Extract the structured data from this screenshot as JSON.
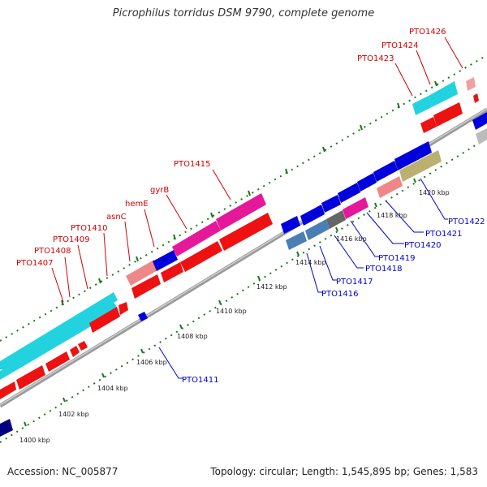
{
  "title": "Picrophilus torridus DSM 9790, complete genome",
  "footer": {
    "accession": "Accession: NC_005877",
    "summary": "Topology: circular; Length: 1,545,895 bp; Genes: 1,583"
  },
  "colors": {
    "line_red": "#d00000",
    "line_blue": "#0000cc",
    "tick_green": "#1a7a1a",
    "backbone": "#999999"
  },
  "ruler": [
    "1400 kbp",
    "1402 kbp",
    "1404 kbp",
    "1406 kbp",
    "1408 kbp",
    "1410 kbp",
    "1412 kbp",
    "1414 kbp",
    "1416 kbp",
    "1418 kbp",
    "1420 kbp"
  ],
  "labels_top": [
    "PTO1407",
    "PTO1408",
    "PTO1409",
    "PTO1410",
    "asnC",
    "hemE",
    "gyrB",
    "PTO1415",
    "PTO1423",
    "PTO1424",
    "PTO1426"
  ],
  "labels_bottom": [
    "PTO1411",
    "PTO1416",
    "PTO1417",
    "PTO1418",
    "PTO1419",
    "PTO1420",
    "PTO1421",
    "PTO1422"
  ]
}
